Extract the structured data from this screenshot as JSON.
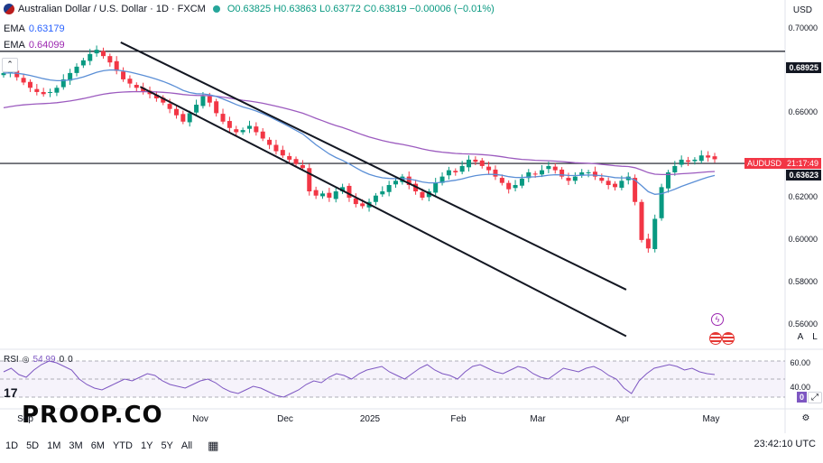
{
  "header": {
    "symbol_title": "Australian Dollar / U.S. Dollar · 1D · FXCM",
    "ohlc": "O0.63825 H0.63863 L0.63772 C0.63819 −0.00006 (−0.01%)",
    "ema1_label": "EMA",
    "ema1_value": "0.63179",
    "ema2_label": "EMA",
    "ema2_value": "0.64099",
    "currency": "USD"
  },
  "price_axis": {
    "ticks": [
      "0.70000",
      "0.68000",
      "0.66000",
      "0.62000",
      "0.60000",
      "0.58000",
      "0.56000"
    ],
    "upper_line_label": "0.68925",
    "symbol_tag": "AUDUSD",
    "countdown": "21:17:49",
    "lower_line_label": "0.63623",
    "scale_buttons": [
      "A",
      "L"
    ]
  },
  "rsi": {
    "label": "RSI",
    "value": "54.99",
    "extra1": "0",
    "extra2": "0",
    "ticks": [
      "60.00",
      "40.00"
    ],
    "current_tag": "0"
  },
  "time_axis": {
    "ticks": [
      "Sep",
      "Nov",
      "Dec",
      "2025",
      "Feb",
      "Mar",
      "Apr",
      "May"
    ]
  },
  "branding": {
    "tv": "17",
    "logo": "PROOP.CO"
  },
  "bottom_bar": {
    "ranges": [
      "1D",
      "5D",
      "1M",
      "3M",
      "6M",
      "YTD",
      "1Y",
      "5Y",
      "All"
    ],
    "clock": "23:42:10 UTC"
  },
  "colors": {
    "up": "#089981",
    "down": "#f23645",
    "ema_short": "#5b8fd6",
    "ema_long": "#9c5bbf",
    "rsi": "#7e57c2",
    "tag_red": "#f23645",
    "tag_black": "#131722"
  },
  "chart_data": {
    "type": "candlestick",
    "timeframe": "1D",
    "ylim": [
      0.55,
      0.705
    ],
    "horizontal_lines": [
      0.68925,
      0.63623
    ],
    "channel_lines": [
      {
        "from": [
          "2024-10-01",
          0.6935
        ],
        "to": [
          "2025-05-01",
          0.5765
        ]
      },
      {
        "from": [
          "2024-10-08",
          0.6725
        ],
        "to": [
          "2025-05-01",
          0.5545
        ]
      }
    ],
    "ema_short_last": 0.63179,
    "ema_long_last": 0.64099,
    "close_sequence": [
      0.679,
      0.6795,
      0.677,
      0.6745,
      0.672,
      0.67,
      0.669,
      0.67,
      0.672,
      0.676,
      0.679,
      0.682,
      0.685,
      0.688,
      0.69,
      0.687,
      0.684,
      0.68,
      0.676,
      0.674,
      0.672,
      0.67,
      0.669,
      0.667,
      0.665,
      0.662,
      0.659,
      0.656,
      0.66,
      0.664,
      0.668,
      0.665,
      0.66,
      0.656,
      0.653,
      0.651,
      0.652,
      0.654,
      0.651,
      0.648,
      0.645,
      0.642,
      0.64,
      0.638,
      0.636,
      0.634,
      0.623,
      0.621,
      0.622,
      0.62,
      0.623,
      0.625,
      0.62,
      0.617,
      0.616,
      0.618,
      0.621,
      0.623,
      0.626,
      0.628,
      0.63,
      0.626,
      0.623,
      0.62,
      0.623,
      0.627,
      0.63,
      0.633,
      0.632,
      0.635,
      0.638,
      0.637,
      0.635,
      0.633,
      0.63,
      0.627,
      0.624,
      0.626,
      0.629,
      0.632,
      0.631,
      0.633,
      0.635,
      0.633,
      0.63,
      0.628,
      0.63,
      0.632,
      0.632,
      0.63,
      0.628,
      0.626,
      0.625,
      0.628,
      0.63,
      0.618,
      0.6,
      0.596,
      0.61,
      0.625,
      0.632,
      0.635,
      0.638,
      0.637,
      0.638,
      0.64,
      0.639,
      0.6382
    ],
    "rsi_range": [
      20,
      80
    ],
    "rsi_sequence": [
      58,
      62,
      55,
      52,
      60,
      66,
      70,
      68,
      64,
      60,
      50,
      44,
      40,
      38,
      42,
      46,
      50,
      48,
      52,
      56,
      54,
      48,
      44,
      42,
      40,
      44,
      48,
      50,
      46,
      40,
      36,
      34,
      38,
      42,
      40,
      36,
      32,
      30,
      34,
      38,
      44,
      48,
      46,
      52,
      56,
      54,
      50,
      56,
      60,
      62,
      64,
      58,
      54,
      50,
      56,
      62,
      66,
      60,
      56,
      54,
      50,
      58,
      64,
      66,
      62,
      58,
      56,
      60,
      64,
      62,
      56,
      52,
      50,
      56,
      62,
      60,
      58,
      62,
      64,
      60,
      54,
      50,
      40,
      34,
      48,
      56,
      62,
      64,
      66,
      64,
      60,
      62,
      58,
      56,
      55
    ]
  }
}
